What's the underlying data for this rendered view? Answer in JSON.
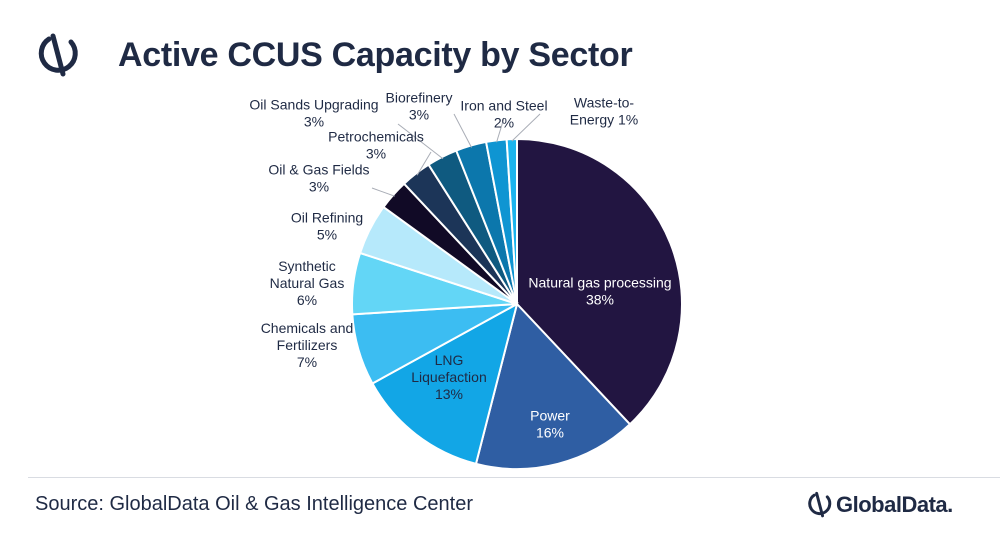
{
  "header": {
    "title": "Active CCUS Capacity by Sector",
    "logo_icon": "globaldata-mark-icon"
  },
  "footer": {
    "source": "Source: GlobalData Oil & Gas Intelligence Center",
    "brand": "GlobalData.",
    "brand_icon": "globaldata-mark-icon"
  },
  "chart_data": {
    "type": "pie",
    "title": "Active CCUS Capacity by Sector",
    "start_angle_deg": 0,
    "direction": "clockwise",
    "slices": [
      {
        "label": "Natural gas processing",
        "lines": [
          "Natural gas processing"
        ],
        "value": 38,
        "value_label": "38%",
        "color": "#221541",
        "text_color": "#ffffff"
      },
      {
        "label": "Power",
        "lines": [
          "Power"
        ],
        "value": 16,
        "value_label": "16%",
        "color": "#2f5ea3",
        "text_color": "#ffffff"
      },
      {
        "label": "LNG Liquefaction",
        "lines": [
          "LNG",
          "Liquefaction"
        ],
        "value": 13,
        "value_label": "13%",
        "color": "#12a6e6",
        "text_color": "#1f2a44"
      },
      {
        "label": "Chemicals and Fertilizers",
        "lines": [
          "Chemicals and",
          "Fertilizers"
        ],
        "value": 7,
        "value_label": "7%",
        "color": "#3cbdf2",
        "text_color": "#1f2a44"
      },
      {
        "label": "Synthetic Natural Gas",
        "lines": [
          "Synthetic",
          "Natural Gas"
        ],
        "value": 6,
        "value_label": "6%",
        "color": "#63d6f6",
        "text_color": "#1f2a44"
      },
      {
        "label": "Oil Refining",
        "lines": [
          "Oil Refining"
        ],
        "value": 5,
        "value_label": "5%",
        "color": "#b6e9fb",
        "text_color": "#1f2a44"
      },
      {
        "label": "Oil & Gas Fields",
        "lines": [
          "Oil & Gas Fields"
        ],
        "value": 3,
        "value_label": "3%",
        "color": "#110a26",
        "text_color": "#1f2a44"
      },
      {
        "label": "Petrochemicals",
        "lines": [
          "Petrochemicals"
        ],
        "value": 3,
        "value_label": "3%",
        "color": "#1c3558",
        "text_color": "#1f2a44"
      },
      {
        "label": "Oil Sands Upgrading",
        "lines": [
          "Oil Sands Upgrading"
        ],
        "value": 3,
        "value_label": "3%",
        "color": "#0f5a80",
        "text_color": "#1f2a44"
      },
      {
        "label": "Biorefinery",
        "lines": [
          "Biorefinery"
        ],
        "value": 3,
        "value_label": "3%",
        "color": "#0c77ac",
        "text_color": "#1f2a44"
      },
      {
        "label": "Iron and Steel",
        "lines": [
          "Iron and Steel"
        ],
        "value": 2,
        "value_label": "2%",
        "color": "#0f95d2",
        "text_color": "#1f2a44"
      },
      {
        "label": "Waste-to-Energy",
        "lines": [
          "Waste-to-",
          "Energy 1%"
        ],
        "value": 1,
        "value_label": "",
        "color": "#1cb4ee",
        "text_color": "#1f2a44"
      }
    ]
  }
}
